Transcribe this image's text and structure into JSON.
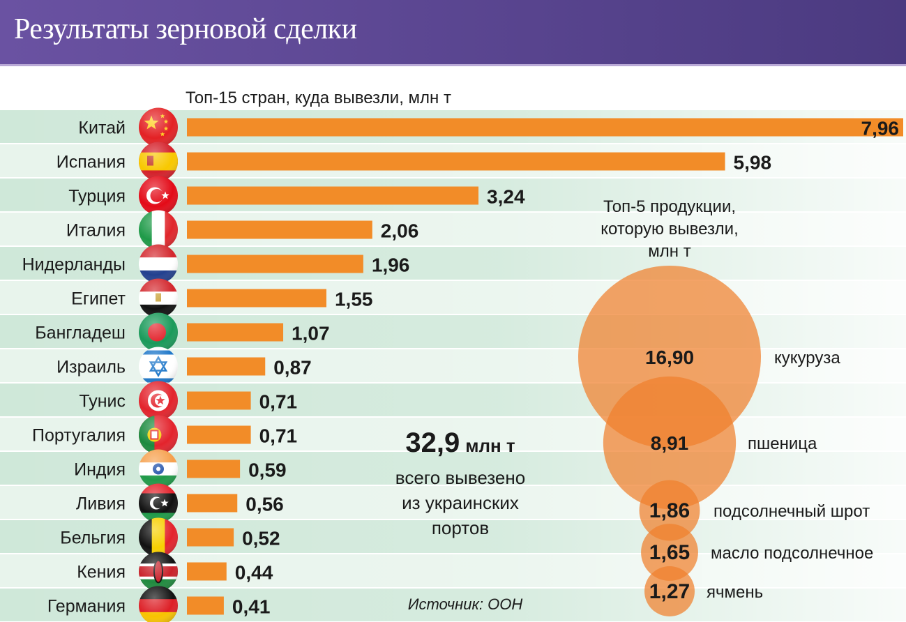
{
  "header": {
    "title": "Результаты зерновой сделки"
  },
  "colors": {
    "bar": "#f28c28",
    "bubble": "#f07f2c",
    "row_dark": "#cfe8d9",
    "row_light": "#e8f4ec",
    "header": "#5e4896"
  },
  "chart_data": [
    {
      "type": "bar",
      "orientation": "horizontal",
      "title": "Топ-15 стран, куда вывезли, млн т",
      "categories": [
        "Китай",
        "Испания",
        "Турция",
        "Италия",
        "Нидерланды",
        "Египет",
        "Бангладеш",
        "Израиль",
        "Тунис",
        "Португалия",
        "Индия",
        "Ливия",
        "Бельгия",
        "Кения",
        "Германия"
      ],
      "values": [
        7.96,
        5.98,
        3.24,
        2.06,
        1.96,
        1.55,
        1.07,
        0.87,
        0.71,
        0.71,
        0.59,
        0.56,
        0.52,
        0.44,
        0.41
      ],
      "labels": [
        "7,96",
        "5,98",
        "3,24",
        "2,06",
        "1,96",
        "1,55",
        "1,07",
        "0,87",
        "0,71",
        "0,71",
        "0,59",
        "0,56",
        "0,52",
        "0,44",
        "0,41"
      ],
      "flags": [
        {
          "kind": "china",
          "colors": [
            "#e32124",
            "#ffd21f"
          ]
        },
        {
          "kind": "hstripes3",
          "colors": [
            "#d4202a",
            "#f8c800",
            "#d4202a"
          ],
          "ratio": "spain"
        },
        {
          "kind": "turkey",
          "colors": [
            "#e30a17",
            "#ffffff"
          ]
        },
        {
          "kind": "vstripes3",
          "colors": [
            "#1e9a48",
            "#ffffff",
            "#e0262b"
          ]
        },
        {
          "kind": "hstripes3",
          "colors": [
            "#d3262c",
            "#ffffff",
            "#23408f"
          ]
        },
        {
          "kind": "hstripes3",
          "colors": [
            "#d3262c",
            "#ffffff",
            "#111111"
          ]
        },
        {
          "kind": "bangladesh",
          "colors": [
            "#1a9a5a",
            "#e3232c"
          ]
        },
        {
          "kind": "israel",
          "colors": [
            "#ffffff",
            "#1b75c8"
          ]
        },
        {
          "kind": "tunisia",
          "colors": [
            "#e3232c",
            "#ffffff"
          ]
        },
        {
          "kind": "portugal",
          "colors": [
            "#1b8a3e",
            "#e3232c",
            "#f5d000"
          ]
        },
        {
          "kind": "india",
          "colors": [
            "#f6a04d",
            "#ffffff",
            "#1f9a48",
            "#1e4fa8"
          ]
        },
        {
          "kind": "libya",
          "colors": [
            "#e3232c",
            "#111111",
            "#1f9a48",
            "#ffffff"
          ]
        },
        {
          "kind": "vstripes3",
          "colors": [
            "#111111",
            "#f8d000",
            "#e3232c"
          ]
        },
        {
          "kind": "kenya",
          "colors": [
            "#111111",
            "#c9212a",
            "#1f8a3e",
            "#ffffff"
          ]
        },
        {
          "kind": "hstripes3",
          "colors": [
            "#111111",
            "#dd1f26",
            "#f8c300"
          ]
        }
      ],
      "xlim": [
        0,
        8
      ]
    },
    {
      "type": "bubble",
      "title": "Топ-5 продукции, которую вывезли, млн т",
      "title_lines": [
        "Топ-5 продукции,",
        "которую вывезли,",
        "млн т"
      ],
      "categories": [
        "кукуруза",
        "пшеница",
        "подсолнечный шрот",
        "масло подсолнечное",
        "ячмень"
      ],
      "values": [
        16.9,
        8.91,
        1.86,
        1.65,
        1.27
      ],
      "labels": [
        "16,90",
        "8,91",
        "1,86",
        "1,65",
        "1,27"
      ]
    }
  ],
  "total": {
    "value": "32,9",
    "unit": "млн т",
    "lines": [
      "всего вывезено",
      "из украинских",
      "портов"
    ]
  },
  "source": "Источник: ООН"
}
